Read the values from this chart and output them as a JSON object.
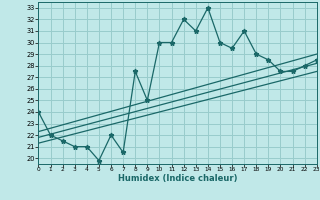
{
  "title": "",
  "xlabel": "Humidex (Indice chaleur)",
  "ylabel": "",
  "bg_color": "#c0e8e8",
  "grid_color": "#98cccc",
  "line_color": "#1a6868",
  "xlim": [
    0,
    23
  ],
  "ylim": [
    19.5,
    33.5
  ],
  "xticks": [
    0,
    1,
    2,
    3,
    4,
    5,
    6,
    7,
    8,
    9,
    10,
    11,
    12,
    13,
    14,
    15,
    16,
    17,
    18,
    19,
    20,
    21,
    22,
    23
  ],
  "yticks": [
    20,
    21,
    22,
    23,
    24,
    25,
    26,
    27,
    28,
    29,
    30,
    31,
    32,
    33
  ],
  "curve_x": [
    0,
    1,
    2,
    3,
    4,
    5,
    6,
    7,
    8,
    9,
    10,
    11,
    12,
    13,
    14,
    15,
    16,
    17,
    18,
    19,
    20,
    21,
    22,
    23
  ],
  "curve_y": [
    24.0,
    22.0,
    21.5,
    21.0,
    21.0,
    19.8,
    22.0,
    20.5,
    27.5,
    25.0,
    30.0,
    30.0,
    32.0,
    31.0,
    33.0,
    30.0,
    29.5,
    31.0,
    29.0,
    28.5,
    27.5,
    27.5,
    28.0,
    28.5
  ],
  "line1_x": [
    0,
    23
  ],
  "line1_y": [
    22.3,
    29.0
  ],
  "line2_x": [
    0,
    23
  ],
  "line2_y": [
    21.8,
    28.2
  ],
  "line3_x": [
    0,
    23
  ],
  "line3_y": [
    21.3,
    27.5
  ]
}
